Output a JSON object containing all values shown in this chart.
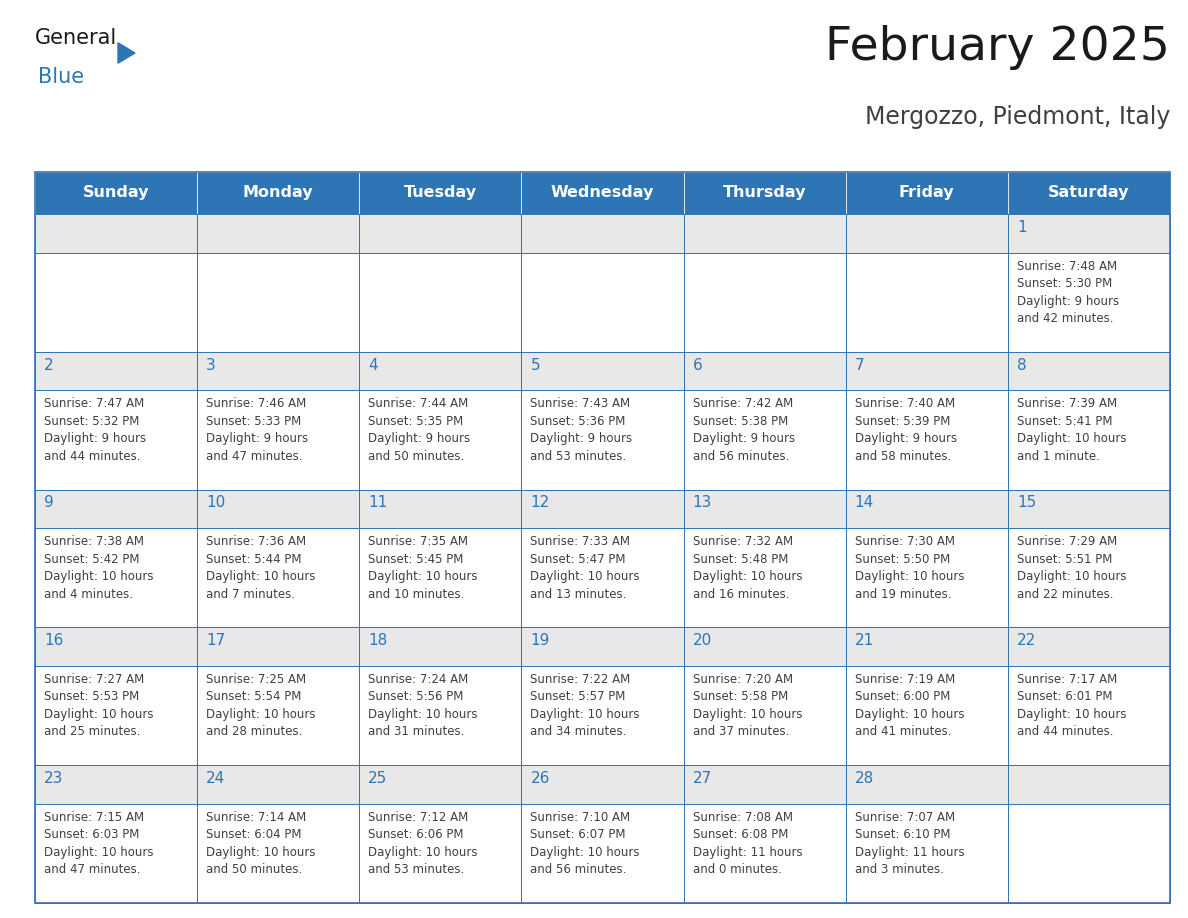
{
  "title": "February 2025",
  "subtitle": "Mergozzo, Piedmont, Italy",
  "days_of_week": [
    "Sunday",
    "Monday",
    "Tuesday",
    "Wednesday",
    "Thursday",
    "Friday",
    "Saturday"
  ],
  "header_bg": "#2E75B6",
  "header_text": "#FFFFFF",
  "cell_border": "#2E75B6",
  "cell_bg": "#FFFFFF",
  "row_top_bg": "#E8E8E8",
  "day_num_color": "#2E75B6",
  "info_text_color": "#404040",
  "title_color": "#1a1a1a",
  "subtitle_color": "#404040",
  "logo_general_color": "#1a1a1a",
  "logo_blue_color": "#2E75B6",
  "weeks": [
    [
      null,
      null,
      null,
      null,
      null,
      null,
      1
    ],
    [
      2,
      3,
      4,
      5,
      6,
      7,
      8
    ],
    [
      9,
      10,
      11,
      12,
      13,
      14,
      15
    ],
    [
      16,
      17,
      18,
      19,
      20,
      21,
      22
    ],
    [
      23,
      24,
      25,
      26,
      27,
      28,
      null
    ]
  ],
  "day_data": {
    "1": {
      "sunrise": "7:48 AM",
      "sunset": "5:30 PM",
      "daylight_h": "9 hours",
      "daylight_m": "and 42 minutes."
    },
    "2": {
      "sunrise": "7:47 AM",
      "sunset": "5:32 PM",
      "daylight_h": "9 hours",
      "daylight_m": "and 44 minutes."
    },
    "3": {
      "sunrise": "7:46 AM",
      "sunset": "5:33 PM",
      "daylight_h": "9 hours",
      "daylight_m": "and 47 minutes."
    },
    "4": {
      "sunrise": "7:44 AM",
      "sunset": "5:35 PM",
      "daylight_h": "9 hours",
      "daylight_m": "and 50 minutes."
    },
    "5": {
      "sunrise": "7:43 AM",
      "sunset": "5:36 PM",
      "daylight_h": "9 hours",
      "daylight_m": "and 53 minutes."
    },
    "6": {
      "sunrise": "7:42 AM",
      "sunset": "5:38 PM",
      "daylight_h": "9 hours",
      "daylight_m": "and 56 minutes."
    },
    "7": {
      "sunrise": "7:40 AM",
      "sunset": "5:39 PM",
      "daylight_h": "9 hours",
      "daylight_m": "and 58 minutes."
    },
    "8": {
      "sunrise": "7:39 AM",
      "sunset": "5:41 PM",
      "daylight_h": "10 hours",
      "daylight_m": "and 1 minute."
    },
    "9": {
      "sunrise": "7:38 AM",
      "sunset": "5:42 PM",
      "daylight_h": "10 hours",
      "daylight_m": "and 4 minutes."
    },
    "10": {
      "sunrise": "7:36 AM",
      "sunset": "5:44 PM",
      "daylight_h": "10 hours",
      "daylight_m": "and 7 minutes."
    },
    "11": {
      "sunrise": "7:35 AM",
      "sunset": "5:45 PM",
      "daylight_h": "10 hours",
      "daylight_m": "and 10 minutes."
    },
    "12": {
      "sunrise": "7:33 AM",
      "sunset": "5:47 PM",
      "daylight_h": "10 hours",
      "daylight_m": "and 13 minutes."
    },
    "13": {
      "sunrise": "7:32 AM",
      "sunset": "5:48 PM",
      "daylight_h": "10 hours",
      "daylight_m": "and 16 minutes."
    },
    "14": {
      "sunrise": "7:30 AM",
      "sunset": "5:50 PM",
      "daylight_h": "10 hours",
      "daylight_m": "and 19 minutes."
    },
    "15": {
      "sunrise": "7:29 AM",
      "sunset": "5:51 PM",
      "daylight_h": "10 hours",
      "daylight_m": "and 22 minutes."
    },
    "16": {
      "sunrise": "7:27 AM",
      "sunset": "5:53 PM",
      "daylight_h": "10 hours",
      "daylight_m": "and 25 minutes."
    },
    "17": {
      "sunrise": "7:25 AM",
      "sunset": "5:54 PM",
      "daylight_h": "10 hours",
      "daylight_m": "and 28 minutes."
    },
    "18": {
      "sunrise": "7:24 AM",
      "sunset": "5:56 PM",
      "daylight_h": "10 hours",
      "daylight_m": "and 31 minutes."
    },
    "19": {
      "sunrise": "7:22 AM",
      "sunset": "5:57 PM",
      "daylight_h": "10 hours",
      "daylight_m": "and 34 minutes."
    },
    "20": {
      "sunrise": "7:20 AM",
      "sunset": "5:58 PM",
      "daylight_h": "10 hours",
      "daylight_m": "and 37 minutes."
    },
    "21": {
      "sunrise": "7:19 AM",
      "sunset": "6:00 PM",
      "daylight_h": "10 hours",
      "daylight_m": "and 41 minutes."
    },
    "22": {
      "sunrise": "7:17 AM",
      "sunset": "6:01 PM",
      "daylight_h": "10 hours",
      "daylight_m": "and 44 minutes."
    },
    "23": {
      "sunrise": "7:15 AM",
      "sunset": "6:03 PM",
      "daylight_h": "10 hours",
      "daylight_m": "and 47 minutes."
    },
    "24": {
      "sunrise": "7:14 AM",
      "sunset": "6:04 PM",
      "daylight_h": "10 hours",
      "daylight_m": "and 50 minutes."
    },
    "25": {
      "sunrise": "7:12 AM",
      "sunset": "6:06 PM",
      "daylight_h": "10 hours",
      "daylight_m": "and 53 minutes."
    },
    "26": {
      "sunrise": "7:10 AM",
      "sunset": "6:07 PM",
      "daylight_h": "10 hours",
      "daylight_m": "and 56 minutes."
    },
    "27": {
      "sunrise": "7:08 AM",
      "sunset": "6:08 PM",
      "daylight_h": "11 hours",
      "daylight_m": "and 0 minutes."
    },
    "28": {
      "sunrise": "7:07 AM",
      "sunset": "6:10 PM",
      "daylight_h": "11 hours",
      "daylight_m": "and 3 minutes."
    }
  }
}
